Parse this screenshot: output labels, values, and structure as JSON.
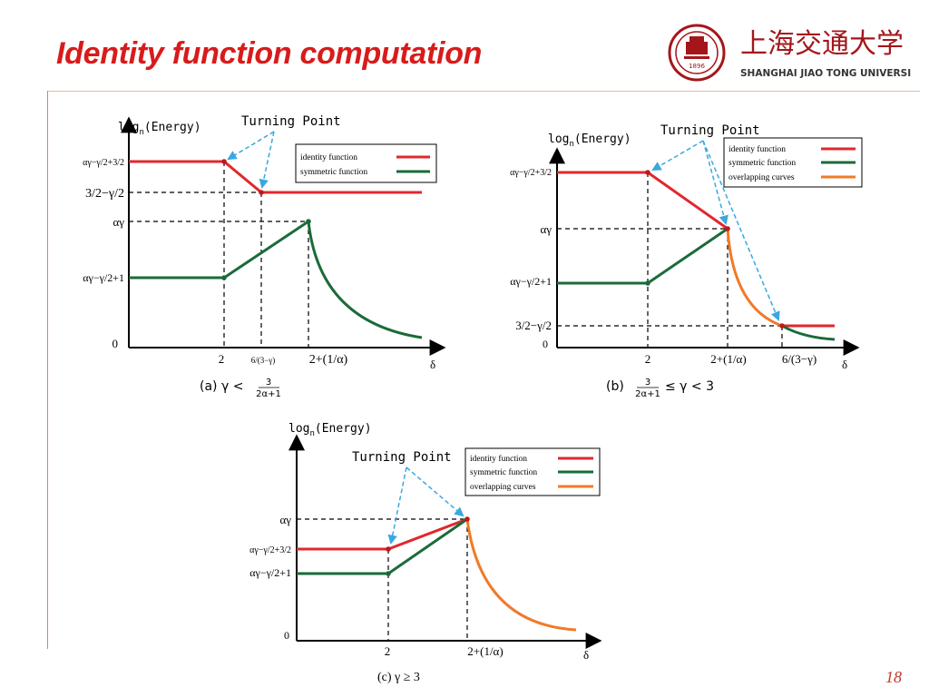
{
  "slide": {
    "title": "Identity function computation",
    "page_number": "18",
    "logo": {
      "chinese": "上海交通大学",
      "english": "SHANGHAI JIAO TONG UNIVERSITY",
      "seal_year": "1896",
      "accent_color": "#a4161a"
    }
  },
  "colors": {
    "identity": "#e0282e",
    "symmetric": "#1a6b3a",
    "overlapping": "#f07a2a",
    "arrow": "#3aa8e0"
  },
  "labels": {
    "ylabel_log": "log",
    "ylabel_sub": "n",
    "ylabel_rest": "(Energy)",
    "turning_point": "Turning Point",
    "xaxis": "δ",
    "zero": "0",
    "alpha_gamma": "αγ",
    "ag_minus_plus32": "αγ−γ/2+3/2",
    "ag_minus_plus1": "αγ−γ/2+1",
    "three_half_minus": "3/2−γ/2",
    "x_two": "2",
    "x_six": "6/(3−γ)",
    "x_six_b": "6/(3−γ)",
    "x_two_plus": "2+(1/α)"
  },
  "legend": {
    "identity": "identity function",
    "symmetric": "symmetric function",
    "overlapping": "overlapping curves"
  },
  "captions": {
    "a_prefix": "(a) γ <",
    "a_num": "3",
    "a_den": "2α+1",
    "b_prefix": "(b)",
    "b_num": "3",
    "b_den": "2α+1",
    "b_suffix": "≤ γ < 3",
    "c": "(c) γ ≥ 3"
  }
}
